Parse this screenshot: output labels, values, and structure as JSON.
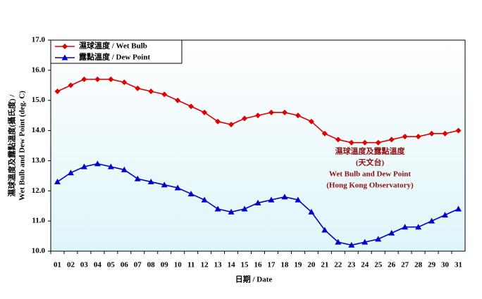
{
  "chart_data": {
    "type": "line",
    "y_label": [
      "濕球溫度及露點溫度(攝氏度) /",
      "Wet Bulb and Dew Point (deg. C)"
    ],
    "x_label": "日期 / Date",
    "annotation": [
      "濕球溫度及露點溫度",
      "(天文台)",
      "Wet Bulb and Dew Point",
      "(Hong Kong Observatory)"
    ],
    "categories": [
      "01",
      "02",
      "03",
      "04",
      "05",
      "06",
      "07",
      "08",
      "09",
      "10",
      "11",
      "12",
      "13",
      "14",
      "15",
      "16",
      "17",
      "18",
      "19",
      "20",
      "21",
      "22",
      "23",
      "24",
      "25",
      "26",
      "27",
      "28",
      "29",
      "30",
      "31"
    ],
    "series": [
      {
        "name": "濕球溫度 / Wet Bulb",
        "color": "#e00000",
        "marker": "diamond",
        "values": [
          15.3,
          15.5,
          15.7,
          15.7,
          15.7,
          15.6,
          15.4,
          15.3,
          15.2,
          15.0,
          14.8,
          14.6,
          14.3,
          14.2,
          14.4,
          14.5,
          14.6,
          14.6,
          14.5,
          14.3,
          13.9,
          13.7,
          13.6,
          13.6,
          13.6,
          13.7,
          13.8,
          13.8,
          13.9,
          13.9,
          14.0
        ]
      },
      {
        "name": "露點溫度 / Dew Point",
        "color": "#0000cc",
        "marker": "triangle",
        "values": [
          12.3,
          12.6,
          12.8,
          12.9,
          12.8,
          12.7,
          12.4,
          12.3,
          12.2,
          12.1,
          11.9,
          11.7,
          11.4,
          11.3,
          11.4,
          11.6,
          11.7,
          11.8,
          11.7,
          11.3,
          10.7,
          10.3,
          10.2,
          10.3,
          10.4,
          10.6,
          10.8,
          10.8,
          11.0,
          11.2,
          11.4
        ]
      }
    ],
    "ylim": [
      10,
      17
    ],
    "yticks": [
      {
        "value": 10,
        "label": "10.0"
      },
      {
        "value": 11,
        "label": "11.0"
      },
      {
        "value": 12,
        "label": "12.0"
      },
      {
        "value": 13,
        "label": "13.0"
      },
      {
        "value": 14,
        "label": "14.0"
      },
      {
        "value": 15,
        "label": "15.0"
      },
      {
        "value": 16,
        "label": "16.0"
      },
      {
        "value": 17,
        "label": "17.0"
      }
    ],
    "legend": "top-left"
  }
}
